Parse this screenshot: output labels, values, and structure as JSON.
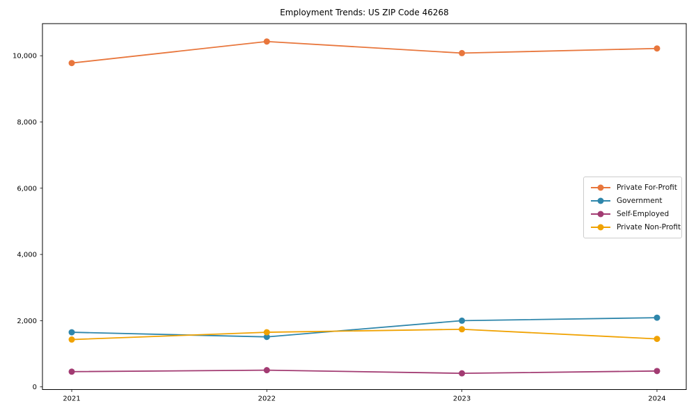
{
  "figure": {
    "title": "Employment Trends: US ZIP Code 46268",
    "background": "#ffffff",
    "axis_color": "#000000"
  },
  "chart_data": {
    "type": "line",
    "title": "Employment Trends: US ZIP Code 46268",
    "xlabel": "",
    "ylabel": "",
    "x": [
      2021,
      2022,
      2023,
      2024
    ],
    "x_tick_labels": [
      "2021",
      "2022",
      "2023",
      "2024"
    ],
    "y_ticks": [
      0,
      2000,
      4000,
      6000,
      8000,
      10000
    ],
    "y_tick_labels": [
      "0",
      "2,000",
      "4,000",
      "6,000",
      "8,000",
      "10,000"
    ],
    "xlim": [
      2020.85,
      2024.15
    ],
    "ylim": [
      -80,
      10970
    ],
    "grid": false,
    "marker": "circle",
    "legend_position": "center-right",
    "series": [
      {
        "name": "Private For-Profit",
        "color": "#E8763C",
        "values": [
          9780,
          10430,
          10080,
          10220
        ]
      },
      {
        "name": "Government",
        "color": "#2E86AB",
        "values": [
          1650,
          1510,
          2000,
          2090
        ]
      },
      {
        "name": "Self-Employed",
        "color": "#A23B72",
        "values": [
          460,
          505,
          410,
          480
        ]
      },
      {
        "name": "Private Non-Profit",
        "color": "#F0A202",
        "values": [
          1430,
          1650,
          1740,
          1450
        ]
      }
    ]
  }
}
